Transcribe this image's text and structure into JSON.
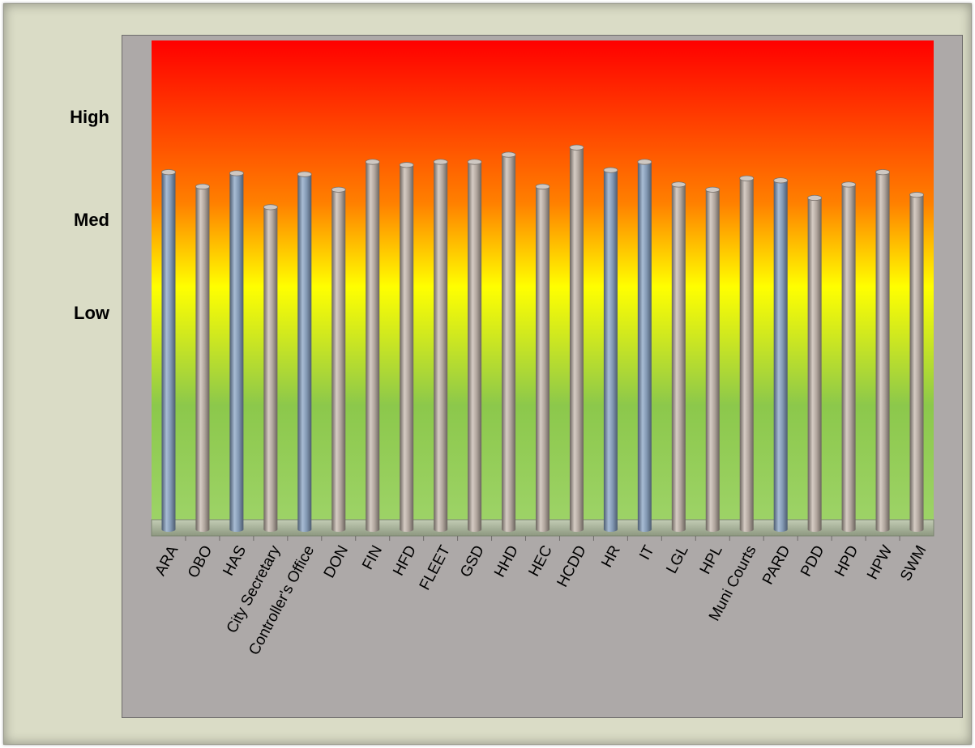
{
  "chart_data": {
    "type": "bar",
    "title": "",
    "xlabel": "",
    "ylabel": "",
    "y_labels": [
      {
        "label": "High",
        "value": 3.0
      },
      {
        "label": "Med",
        "value": 2.0
      },
      {
        "label": "Low",
        "value": 1.1
      }
    ],
    "ylim": [
      -0.9,
      3.75
    ],
    "categories": [
      "ARA",
      "OBO",
      "HAS",
      "City Secretary",
      "Controller's Office",
      "DON",
      "FIN",
      "HFD",
      "FLEET",
      "GSD",
      "HHD",
      "HEC",
      "HCDD",
      "HR",
      "IT",
      "LGL",
      "HPL",
      "Muni Courts",
      "PARD",
      "PDD",
      "HPD",
      "HPW",
      "SWM"
    ],
    "values": [
      2.47,
      2.33,
      2.46,
      2.13,
      2.45,
      2.3,
      2.57,
      2.54,
      2.57,
      2.57,
      2.64,
      2.33,
      2.71,
      2.49,
      2.57,
      2.35,
      2.3,
      2.41,
      2.39,
      2.22,
      2.35,
      2.47,
      2.25
    ],
    "bar_colors": [
      "blue",
      "gray",
      "blue",
      "gray",
      "blue",
      "gray",
      "gray",
      "gray",
      "gray",
      "gray",
      "gray",
      "gray",
      "gray",
      "blue",
      "blue",
      "gray",
      "gray",
      "gray",
      "blue",
      "gray",
      "gray",
      "gray",
      "gray"
    ],
    "background_gradient": [
      "#ff0000",
      "#ff8000",
      "#ffff00",
      "#8cc84b",
      "#9fd46a"
    ],
    "grid": false,
    "legend": "none"
  },
  "colors": {
    "frame": "#dadcc6",
    "panel": "#ada9a8",
    "blue_bar": "#8298b3",
    "gray_bar": "#b0a59d",
    "floor": "#a8b49a"
  }
}
